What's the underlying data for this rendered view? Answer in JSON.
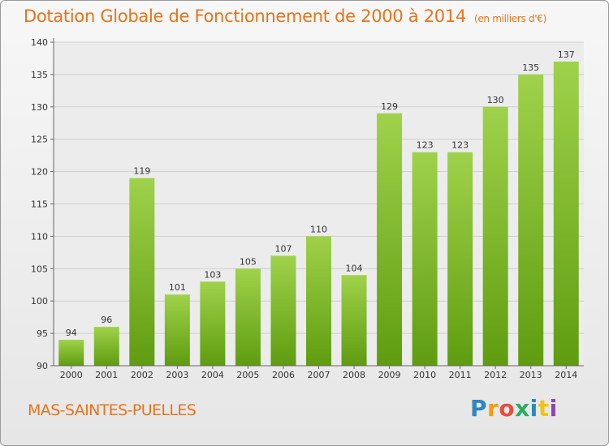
{
  "header": {
    "title": "Dotation Globale de Fonctionnement de 2000 à 2014",
    "unit": "(en milliers d'€)"
  },
  "footer": {
    "commune": "MAS-SAINTES-PUELLES",
    "logo_text": "Proxiti",
    "logo_letters": [
      {
        "ch": "P",
        "color": "#2e86c1"
      },
      {
        "ch": "r",
        "color": "#f39c12"
      },
      {
        "ch": "o",
        "color": "#e74c3c"
      },
      {
        "ch": "x",
        "color": "#27ae60"
      },
      {
        "ch": "i",
        "color": "#2e86c1"
      },
      {
        "ch": "t",
        "color": "#f1c40f"
      },
      {
        "ch": "i",
        "color": "#8e44ad"
      }
    ]
  },
  "colors": {
    "accent": "#e8731b",
    "bar_top": "#9fd24a",
    "bar_bottom": "#5f9c10"
  },
  "chart_data": {
    "type": "bar",
    "title": "Dotation Globale de Fonctionnement de 2000 à 2014",
    "subtitle": "(en milliers d'€)",
    "xlabel": "",
    "ylabel": "",
    "categories": [
      "2000",
      "2001",
      "2002",
      "2003",
      "2004",
      "2005",
      "2006",
      "2007",
      "2008",
      "2009",
      "2010",
      "2011",
      "2012",
      "2013",
      "2014"
    ],
    "values": [
      94,
      96,
      119,
      101,
      103,
      105,
      107,
      110,
      104,
      129,
      123,
      123,
      130,
      135,
      137
    ],
    "ylim": [
      90,
      140
    ],
    "yticks": [
      90,
      95,
      100,
      105,
      110,
      115,
      120,
      125,
      130,
      135,
      140
    ],
    "grid": true,
    "data_labels": true
  }
}
